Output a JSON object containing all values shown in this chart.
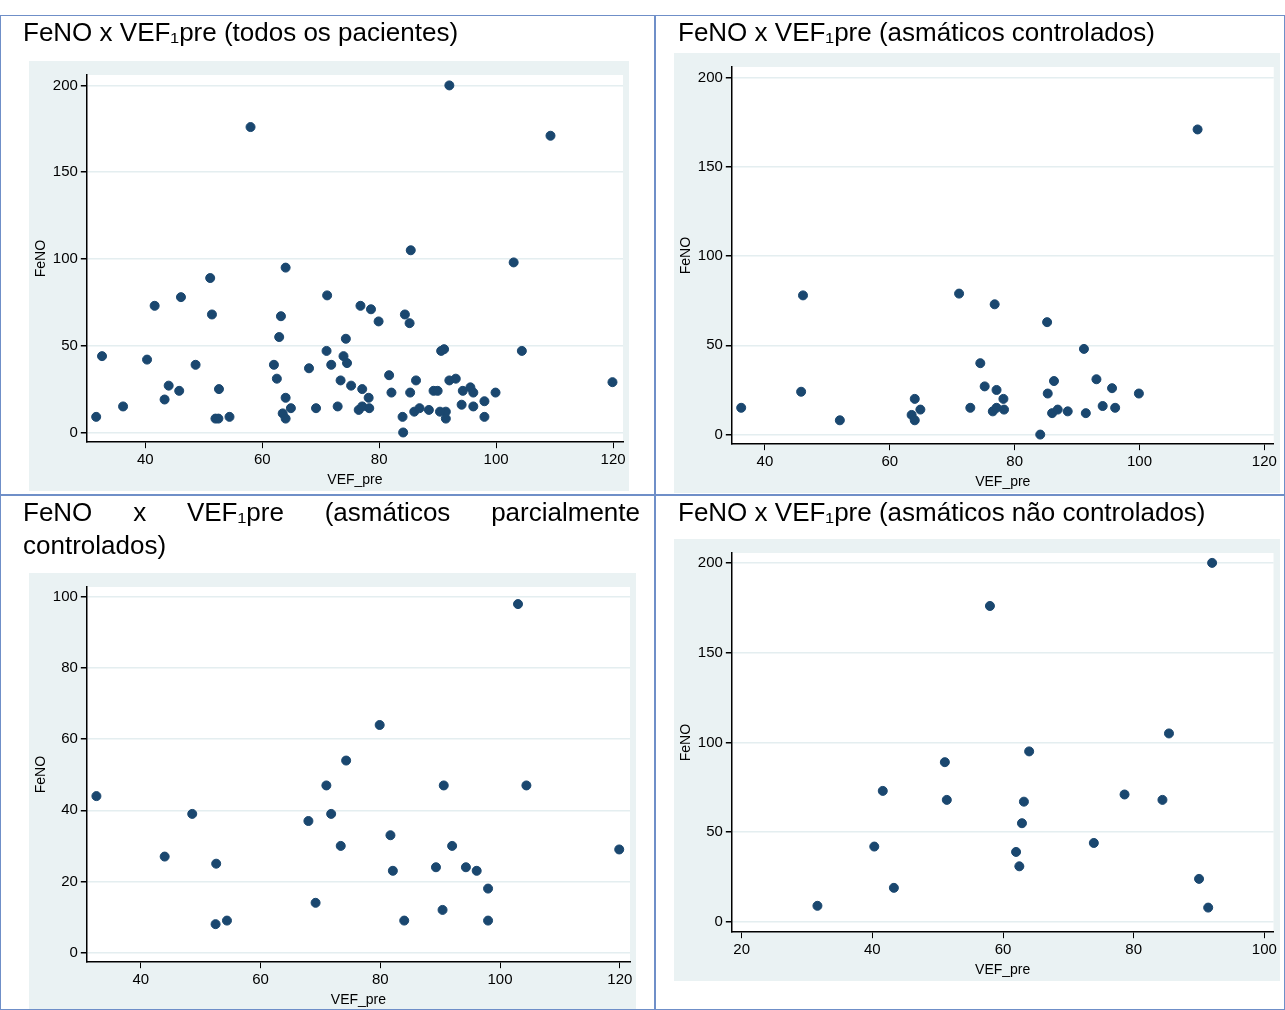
{
  "chart_data": [
    {
      "type": "scatter",
      "title": "FeNO x VEF₁pre (todos os pacientes)",
      "xlabel": "VEF_pre",
      "ylabel": "FeNO",
      "xlim": [
        30,
        121.7
      ],
      "ylim": [
        -5.6,
        206
      ],
      "xticks": [
        40,
        60,
        80,
        100,
        120
      ],
      "yticks": [
        0,
        50,
        100,
        150,
        200
      ],
      "grid": "y",
      "marker": "circle",
      "series": [
        {
          "color": "#1a476f",
          "x": [
            36.2,
            46.1,
            45.8,
            52.0,
            64.0,
            63.5,
            64.0,
            64.9,
            71.1,
            72.9,
            74.5,
            75.2,
            76.8,
            77.1,
            76.5,
            77.1,
            78.2,
            78.3,
            84.1,
            85.2,
            85.3,
            86.3,
            86.0,
            86.9,
            88.5,
            91.1,
            91.4,
            93.1,
            94.1,
            95.6,
            96.1,
            99.9,
            109.3,
            32.6,
            44.0,
            48.6,
            52.6,
            52.5,
            54.4,
            68.0,
            69.2,
            71.0,
            71.8,
            73.4,
            74.3,
            79.9,
            81.7,
            82.1,
            84.0,
            89.3,
            90.4,
            90.6,
            92.0,
            94.3,
            96.1,
            98.0,
            98.0,
            103.0,
            104.4,
            119.9,
            31.6,
            40.3,
            41.6,
            43.3,
            51.1,
            51.4,
            58.0,
            62.0,
            62.5,
            62.9,
            63.2,
            64.0,
            73.9,
            78.6,
            84.4,
            85.4,
            90.0,
            91.4,
            92.0
          ],
          "values": [
            15,
            78,
            24,
            8,
            20,
            11,
            8,
            14,
            79,
            15,
            40,
            27,
            73,
            25,
            13,
            15,
            20,
            14,
            0,
            63,
            23,
            30,
            12,
            14,
            13,
            48,
            12,
            31,
            16,
            26,
            15,
            23,
            171,
            44,
            27,
            39,
            25,
            8,
            9,
            37,
            14,
            47,
            39,
            30,
            54,
            64,
            33,
            23,
            9,
            24,
            12,
            47,
            30,
            24,
            23,
            18,
            9,
            98,
            47,
            29,
            9,
            42,
            73,
            19,
            89,
            68,
            176,
            39,
            31,
            55,
            67,
            95,
            44,
            71,
            68,
            105,
            24,
            8,
            200
          ]
        }
      ]
    },
    {
      "type": "scatter",
      "title": "FeNO x VEF₁pre (asmáticos controlados)",
      "xlabel": "VEF_pre",
      "ylabel": "FeNO",
      "xlim": [
        34.7,
        121.5
      ],
      "ylim": [
        -5.4,
        206
      ],
      "xticks": [
        40,
        60,
        80,
        100,
        120
      ],
      "yticks": [
        0,
        50,
        100,
        150,
        200
      ],
      "grid": "y",
      "marker": "circle",
      "series": [
        {
          "color": "#1a476f",
          "x": [
            36.2,
            46.1,
            45.8,
            52.0,
            64.0,
            63.5,
            64.0,
            64.9,
            71.1,
            72.9,
            74.5,
            75.2,
            76.8,
            77.1,
            76.5,
            77.1,
            78.2,
            78.3,
            84.1,
            85.2,
            85.3,
            86.3,
            86.0,
            86.9,
            88.5,
            91.1,
            91.4,
            93.1,
            94.1,
            95.6,
            96.1,
            99.9,
            109.3
          ],
          "values": [
            15,
            78,
            24,
            8,
            20,
            11,
            8,
            14,
            79,
            15,
            40,
            27,
            73,
            25,
            13,
            15,
            20,
            14,
            0,
            63,
            23,
            30,
            12,
            14,
            13,
            48,
            12,
            31,
            16,
            26,
            15,
            23,
            171
          ]
        }
      ]
    },
    {
      "type": "scatter",
      "title": "FeNO x VEF₁pre (asmáticos parcialmente controlados)",
      "xlabel": "VEF_pre",
      "ylabel": "FeNO",
      "xlim": [
        31.0,
        121.7
      ],
      "ylim": [
        -2.7,
        102.8
      ],
      "xticks": [
        40,
        60,
        80,
        100,
        120
      ],
      "yticks": [
        0,
        20,
        40,
        60,
        80,
        100
      ],
      "grid": "y",
      "marker": "circle",
      "series": [
        {
          "color": "#1a476f",
          "x": [
            32.6,
            44.0,
            48.6,
            52.6,
            52.5,
            54.4,
            68.0,
            69.2,
            71.0,
            71.8,
            73.4,
            74.3,
            79.9,
            81.7,
            82.1,
            84.0,
            89.3,
            90.4,
            90.6,
            92.0,
            94.3,
            96.1,
            98.0,
            98.0,
            103.0,
            104.4,
            119.9
          ],
          "values": [
            44,
            27,
            39,
            25,
            8,
            9,
            37,
            14,
            47,
            39,
            30,
            54,
            64,
            33,
            23,
            9,
            24,
            12,
            47,
            30,
            24,
            23,
            18,
            9,
            98,
            47,
            29
          ]
        }
      ]
    },
    {
      "type": "scatter",
      "title": "FeNO x VEF₁pre (asmáticos não controlados)",
      "xlabel": "VEF_pre",
      "ylabel": "FeNO",
      "xlim": [
        18.5,
        101.4
      ],
      "ylim": [
        -5.7,
        205.5
      ],
      "xticks": [
        20,
        40,
        60,
        80,
        100
      ],
      "yticks": [
        0,
        50,
        100,
        150,
        200
      ],
      "grid": "y",
      "marker": "circle",
      "series": [
        {
          "color": "#1a476f",
          "x": [
            31.6,
            40.3,
            41.6,
            43.3,
            51.1,
            51.4,
            58.0,
            62.0,
            62.5,
            62.9,
            63.2,
            64.0,
            73.9,
            78.6,
            84.4,
            85.4,
            90.0,
            91.4,
            92.0
          ],
          "values": [
            9,
            42,
            73,
            19,
            89,
            68,
            176,
            39,
            31,
            55,
            67,
            95,
            44,
            71,
            68,
            105,
            24,
            8,
            200
          ]
        }
      ]
    }
  ]
}
